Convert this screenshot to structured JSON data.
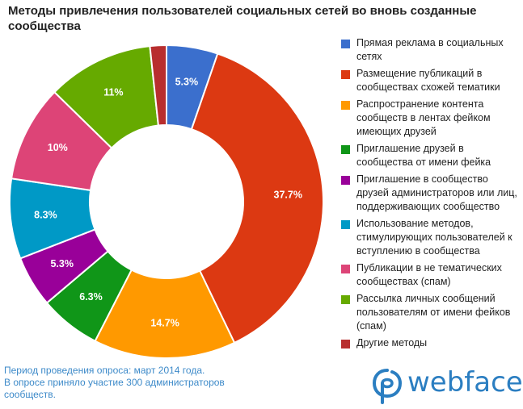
{
  "title": "Методы привлечения пользователей социальных сетей во вновь созданные сообщества",
  "chart_data": {
    "type": "pie",
    "title": "Методы привлечения пользователей социальных сетей во вновь созданные сообщества",
    "legend_position": "right",
    "slices": [
      {
        "label": "Прямая реклама в социальных сетях",
        "value": 5.3,
        "value_label": "5.3%",
        "color": "#3b6fcd"
      },
      {
        "label": "Размещение публикаций в сообществах схожей тематики",
        "value": 37.7,
        "value_label": "37.7%",
        "color": "#dc3912"
      },
      {
        "label": "Распространение контента сообществ в лентах фейком имеющих друзей",
        "value": 14.7,
        "value_label": "14.7%",
        "color": "#ff9900"
      },
      {
        "label": "Приглашение друзей в сообщества от имени фейка",
        "value": 6.3,
        "value_label": "6.3%",
        "color": "#109618"
      },
      {
        "label": "Приглашение в сообщество друзей администраторов или лиц, поддерживающих сообщество",
        "value": 5.3,
        "value_label": "5.3%",
        "color": "#990099"
      },
      {
        "label": "Использование методов, стимулирующих пользователей к вступлению в сообщества",
        "value": 8.3,
        "value_label": "8.3%",
        "color": "#0099c6"
      },
      {
        "label": "Публикации в не тематических сообществах (спам)",
        "value": 10,
        "value_label": "10%",
        "color": "#dd4477"
      },
      {
        "label": "Рассылка личных сообщений пользователям от имени фейков (спам)",
        "value": 11,
        "value_label": "11%",
        "color": "#66aa00"
      },
      {
        "label": "Другие методы",
        "value": 1.7,
        "value_label": "",
        "color": "#b82e2e"
      }
    ]
  },
  "note": {
    "line1": "Период проведения опроса: март 2014 года.",
    "line2": "В опросе приняло участие 300 администраторов",
    "line3": "сообществ."
  },
  "logo": {
    "text": "webface"
  }
}
